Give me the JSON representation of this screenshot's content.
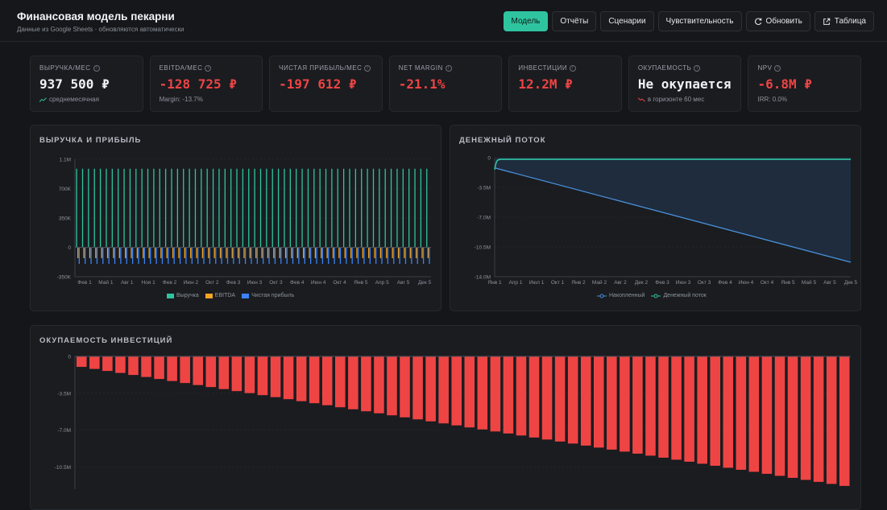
{
  "header": {
    "title": "Финансовая модель пекарни",
    "subtitle": "Данные из Google Sheets · обновляются автоматически"
  },
  "nav": {
    "model": "Модель",
    "reports": "Отчёты",
    "scenarios": "Сценарии",
    "sensitivity": "Чувствительность",
    "refresh": "Обновить",
    "table": "Таблица"
  },
  "kpis": [
    {
      "label": "Выручка/мес",
      "value": "937 500 ₽",
      "note": "среднемесячная"
    },
    {
      "label": "EBITDA/мес",
      "value": "-128 725 ₽",
      "note": "Margin: -13.7%"
    },
    {
      "label": "Чистая прибыль/мес",
      "value": "-197 612 ₽",
      "note": ""
    },
    {
      "label": "Net Margin",
      "value": "-21.1%",
      "note": ""
    },
    {
      "label": "Инвестиции",
      "value": "12.2M ₽",
      "note": ""
    },
    {
      "label": "Окупаемость",
      "value": "Не окупается",
      "note": "в горизонте 60 мес"
    },
    {
      "label": "NPV",
      "value": "-6.8M ₽",
      "note": "IRR: 0.0%"
    }
  ],
  "colors": {
    "accent": "#2fc4a0",
    "revenue": "#2fc4a0",
    "ebitda": "#f5a524",
    "net_profit": "#3b82f6",
    "negative": "#ef4444",
    "cumulative": "#4a90d9"
  },
  "panels": {
    "revenue_profit": "Выручка и прибыль",
    "cash_flow": "Денежный поток",
    "payback": "Окупаемость инвестиций"
  },
  "chart_data": [
    {
      "type": "bar",
      "title": "Выручка и прибыль",
      "months": 60,
      "x_tick_labels": [
        "Фев 1",
        "Май 1",
        "Авг 1",
        "Ноя 1",
        "Фев 2",
        "Июн 2",
        "Окт 2",
        "Фев 3",
        "Июн 3",
        "Окт 3",
        "Фев 4",
        "Июн 4",
        "Окт 4",
        "Янв 5",
        "Апр 5",
        "Авг 5",
        "Дек 5"
      ],
      "y_ticks": [
        "1.1M",
        "700K",
        "350K",
        "0",
        "-350K"
      ],
      "ylim": [
        -350000,
        1050000
      ],
      "series": [
        {
          "name": "Выручка",
          "value_per_month": 937500
        },
        {
          "name": "EBITDA",
          "value_per_month": -128725
        },
        {
          "name": "Чистая прибыль",
          "value_per_month": -197612
        }
      ]
    },
    {
      "type": "area",
      "title": "Денежный поток",
      "months": 60,
      "x_tick_labels": [
        "Янв 1",
        "Апр 1",
        "Июл 1",
        "Окт 1",
        "Янв 2",
        "Май 2",
        "Авг 2",
        "Дек 2",
        "Фев 3",
        "Июн 3",
        "Окт 3",
        "Фев 4",
        "Июн 4",
        "Окт 4",
        "Янв 5",
        "Май 5",
        "Авг 5",
        "Дек 5"
      ],
      "y_ticks": [
        "0",
        "-3.5M",
        "-7.0M",
        "-10.5M",
        "-14.0M"
      ],
      "ylim": [
        -14000000,
        0
      ],
      "series": [
        {
          "name": "Накопленный",
          "start": -1200000,
          "end": -12300000
        },
        {
          "name": "Денежный поток",
          "value_per_month": -197612,
          "first_month": -1400000
        }
      ]
    },
    {
      "type": "bar",
      "title": "Окупаемость инвестиций",
      "months": 60,
      "y_ticks": [
        "0",
        "-3.5M",
        "-7.0M",
        "-10.5M"
      ],
      "ylim": [
        -12600000,
        0
      ],
      "series": [
        {
          "start": -1000000,
          "end": -12300000
        }
      ]
    }
  ]
}
